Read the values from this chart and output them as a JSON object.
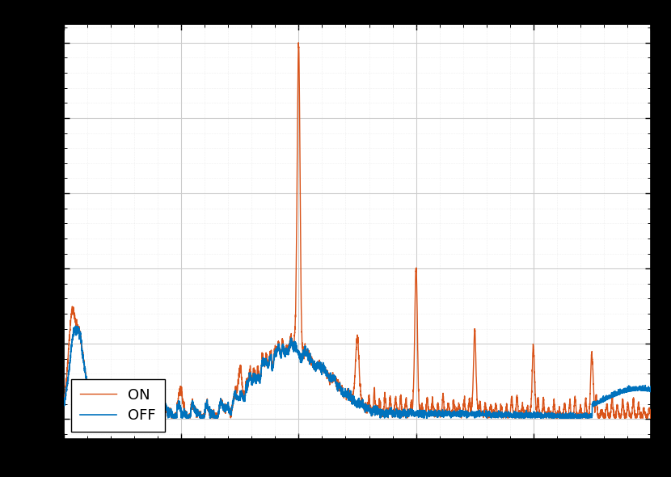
{
  "color_off": "#0072BD",
  "color_on": "#D95319",
  "legend_labels": [
    "OFF",
    "ON"
  ],
  "axes_facecolor": "#ffffff",
  "fig_facecolor": "#000000",
  "grid_major_color": "#cccccc",
  "grid_minor_color": "#e0e0e0",
  "linewidth_off": 1.2,
  "linewidth_on": 1.0
}
